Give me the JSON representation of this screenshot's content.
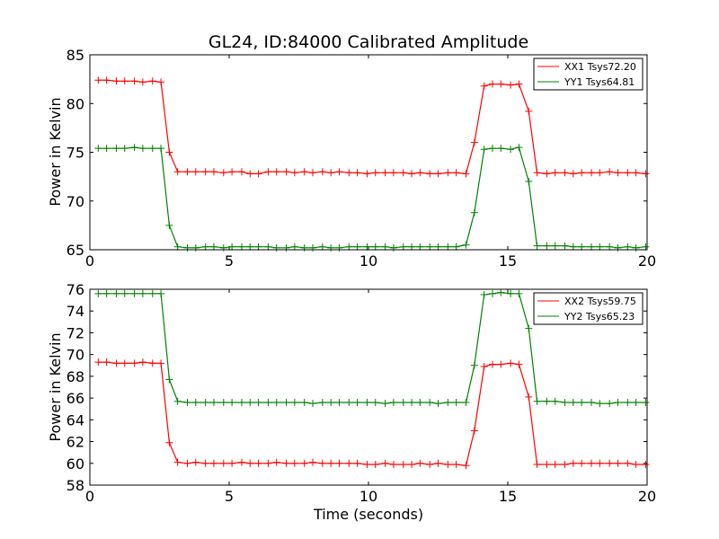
{
  "chart_data": [
    {
      "type": "line",
      "title": "GL24, ID:84000 Calibrated Amplitude",
      "xlabel": "",
      "ylabel": "Power in Kelvin",
      "xlim": [
        0,
        20
      ],
      "ylim": [
        65,
        85
      ],
      "xticks": [
        "0",
        "5",
        "10",
        "15",
        "20"
      ],
      "yticks": [
        "65",
        "70",
        "75",
        "80",
        "85"
      ],
      "legend_position": "top-right",
      "grid": false,
      "x": [
        0.3,
        0.6,
        0.95,
        1.25,
        1.6,
        1.9,
        2.25,
        2.55,
        2.85,
        3.15,
        3.5,
        3.8,
        4.15,
        4.45,
        4.8,
        5.1,
        5.45,
        5.75,
        6.05,
        6.4,
        6.7,
        7.05,
        7.35,
        7.7,
        8.0,
        8.35,
        8.65,
        8.95,
        9.3,
        9.6,
        9.95,
        10.25,
        10.6,
        10.9,
        11.25,
        11.55,
        11.85,
        12.2,
        12.5,
        12.85,
        13.15,
        13.5,
        13.8,
        14.15,
        14.45,
        14.75,
        15.1,
        15.4,
        15.75,
        16.05,
        16.4,
        16.7,
        17.05,
        17.35,
        17.65,
        18.0,
        18.3,
        18.65,
        18.95,
        19.3,
        19.6,
        19.95
      ],
      "series": [
        {
          "name": "XX1 Tsys72.20",
          "color": "#ff0000",
          "values": [
            82.4,
            82.4,
            82.3,
            82.3,
            82.3,
            82.2,
            82.3,
            82.2,
            75.0,
            73.0,
            73.0,
            73.0,
            73.0,
            73.0,
            72.9,
            73.0,
            73.0,
            72.8,
            72.8,
            73.0,
            73.0,
            73.0,
            72.9,
            73.0,
            72.9,
            73.0,
            72.9,
            73.0,
            72.9,
            72.9,
            72.8,
            72.9,
            72.9,
            72.9,
            72.9,
            72.8,
            72.9,
            72.8,
            72.8,
            72.9,
            72.9,
            72.8,
            76.0,
            81.8,
            82.0,
            82.0,
            81.9,
            82.0,
            79.2,
            72.9,
            72.8,
            72.9,
            72.9,
            72.8,
            72.9,
            72.9,
            72.9,
            73.0,
            72.9,
            72.9,
            72.9,
            72.8
          ]
        },
        {
          "name": "YY1 Tsys64.81",
          "color": "#008000",
          "values": [
            75.4,
            75.4,
            75.4,
            75.4,
            75.5,
            75.4,
            75.4,
            75.4,
            67.5,
            65.3,
            65.2,
            65.2,
            65.3,
            65.3,
            65.2,
            65.3,
            65.3,
            65.3,
            65.3,
            65.3,
            65.2,
            65.2,
            65.3,
            65.2,
            65.2,
            65.3,
            65.2,
            65.2,
            65.3,
            65.3,
            65.3,
            65.3,
            65.3,
            65.2,
            65.3,
            65.3,
            65.3,
            65.3,
            65.3,
            65.3,
            65.3,
            65.5,
            68.8,
            75.3,
            75.4,
            75.4,
            75.3,
            75.5,
            72.0,
            65.4,
            65.4,
            65.4,
            65.4,
            65.3,
            65.3,
            65.3,
            65.3,
            65.3,
            65.2,
            65.3,
            65.2,
            65.3
          ]
        }
      ]
    },
    {
      "type": "line",
      "title": "",
      "xlabel": "Time (seconds)",
      "ylabel": "Power in Kelvin",
      "xlim": [
        0,
        20
      ],
      "ylim": [
        58,
        76
      ],
      "xticks": [
        "0",
        "5",
        "10",
        "15",
        "20"
      ],
      "yticks": [
        "58",
        "60",
        "62",
        "64",
        "66",
        "68",
        "70",
        "72",
        "74",
        "76"
      ],
      "legend_position": "top-right",
      "grid": false,
      "x": [
        0.3,
        0.6,
        0.95,
        1.25,
        1.6,
        1.9,
        2.25,
        2.55,
        2.85,
        3.15,
        3.5,
        3.8,
        4.15,
        4.45,
        4.8,
        5.1,
        5.45,
        5.75,
        6.05,
        6.4,
        6.7,
        7.05,
        7.35,
        7.7,
        8.0,
        8.35,
        8.65,
        8.95,
        9.3,
        9.6,
        9.95,
        10.25,
        10.6,
        10.9,
        11.25,
        11.55,
        11.85,
        12.2,
        12.5,
        12.85,
        13.15,
        13.5,
        13.8,
        14.15,
        14.45,
        14.75,
        15.1,
        15.4,
        15.75,
        16.05,
        16.4,
        16.7,
        17.05,
        17.35,
        17.65,
        18.0,
        18.3,
        18.65,
        18.95,
        19.3,
        19.6,
        19.95
      ],
      "series": [
        {
          "name": "XX2 Tsys59.75",
          "color": "#ff0000",
          "values": [
            69.3,
            69.3,
            69.2,
            69.2,
            69.2,
            69.3,
            69.2,
            69.2,
            61.9,
            60.1,
            60.0,
            60.1,
            60.0,
            60.0,
            60.0,
            60.0,
            60.1,
            60.0,
            60.0,
            60.0,
            60.1,
            60.0,
            60.0,
            60.0,
            60.1,
            60.0,
            60.0,
            60.0,
            60.0,
            60.0,
            59.9,
            59.9,
            60.0,
            59.9,
            59.9,
            59.9,
            60.0,
            59.9,
            60.0,
            59.9,
            59.9,
            59.8,
            63.0,
            68.9,
            69.1,
            69.1,
            69.2,
            69.1,
            66.1,
            59.9,
            59.9,
            59.9,
            59.9,
            60.0,
            60.0,
            60.0,
            60.0,
            60.0,
            60.0,
            60.0,
            59.9,
            59.9
          ]
        },
        {
          "name": "YY2 Tsys65.23",
          "color": "#008000",
          "values": [
            75.6,
            75.6,
            75.6,
            75.6,
            75.6,
            75.6,
            75.6,
            75.6,
            67.7,
            65.7,
            65.6,
            65.6,
            65.6,
            65.6,
            65.6,
            65.6,
            65.6,
            65.6,
            65.6,
            65.6,
            65.6,
            65.6,
            65.6,
            65.6,
            65.5,
            65.6,
            65.6,
            65.6,
            65.6,
            65.6,
            65.6,
            65.6,
            65.5,
            65.6,
            65.6,
            65.6,
            65.6,
            65.6,
            65.5,
            65.6,
            65.6,
            65.6,
            69.0,
            75.5,
            75.6,
            75.7,
            75.6,
            75.6,
            72.4,
            65.7,
            65.7,
            65.7,
            65.6,
            65.6,
            65.6,
            65.6,
            65.5,
            65.5,
            65.6,
            65.6,
            65.6,
            65.6
          ]
        }
      ]
    }
  ]
}
